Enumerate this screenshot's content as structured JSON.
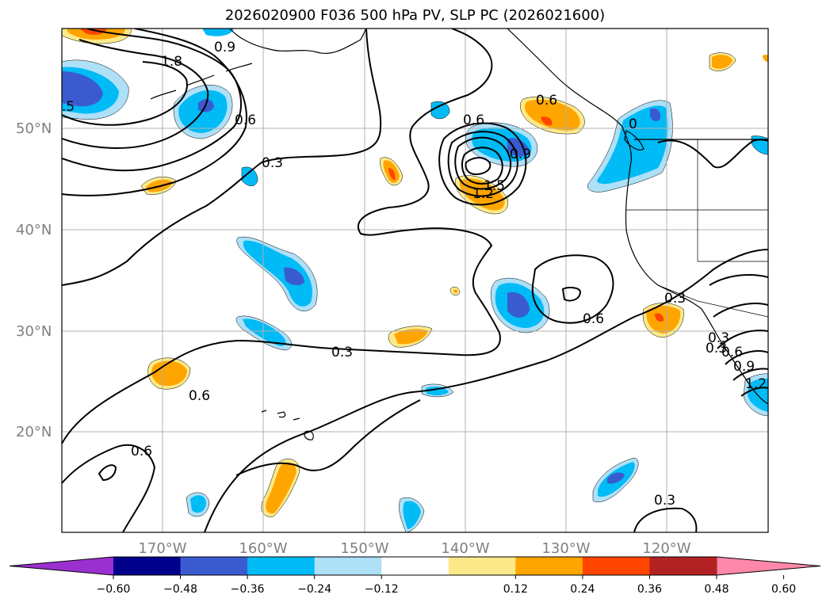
{
  "title": "2026020900 F036 500 hPa PV, SLP PC (2026021600)",
  "map": {
    "lat_labels": [
      "50°N",
      "40°N",
      "30°N",
      "20°N"
    ],
    "lon_labels": [
      "170°W",
      "160°W",
      "150°W",
      "140°W",
      "130°W",
      "120°W"
    ],
    "contour_labels": [
      "1.8",
      "0.9",
      "0.6",
      "0.3",
      "0.6",
      "0.9",
      "1.5",
      "1.2",
      "0.6",
      "0.6",
      "0.3",
      "0.6",
      "0.3",
      "0.6",
      "0.3",
      "0.3",
      ".5",
      "0",
      "0.3",
      "0.6",
      "0.9",
      "1.2"
    ]
  },
  "colorbar": {
    "ticks": [
      "−0.60",
      "−0.48",
      "−0.36",
      "−0.24",
      "−0.12",
      "0.12",
      "0.24",
      "0.36",
      "0.48",
      "0.60"
    ],
    "colors": {
      "min_extend": "#9b30d0",
      "bins": [
        "#9b30d0",
        "#00008b",
        "#3a5bd0",
        "#00bbf5",
        "#aee0f8",
        "#ffffff",
        "#fde98a",
        "#ffa500",
        "#ff4500",
        "#b22222",
        "#ff88aa"
      ],
      "max_extend": "#ff88aa"
    }
  },
  "colors": {
    "neg_light": "#aee0f8",
    "neg_mid": "#00bbf5",
    "neg_strong": "#3a5bd0",
    "pos_light": "#fde98a",
    "pos_mid": "#ffa500",
    "pos_strong": "#ff4500",
    "grid": "#b0b0b0",
    "contour": "#000000"
  }
}
